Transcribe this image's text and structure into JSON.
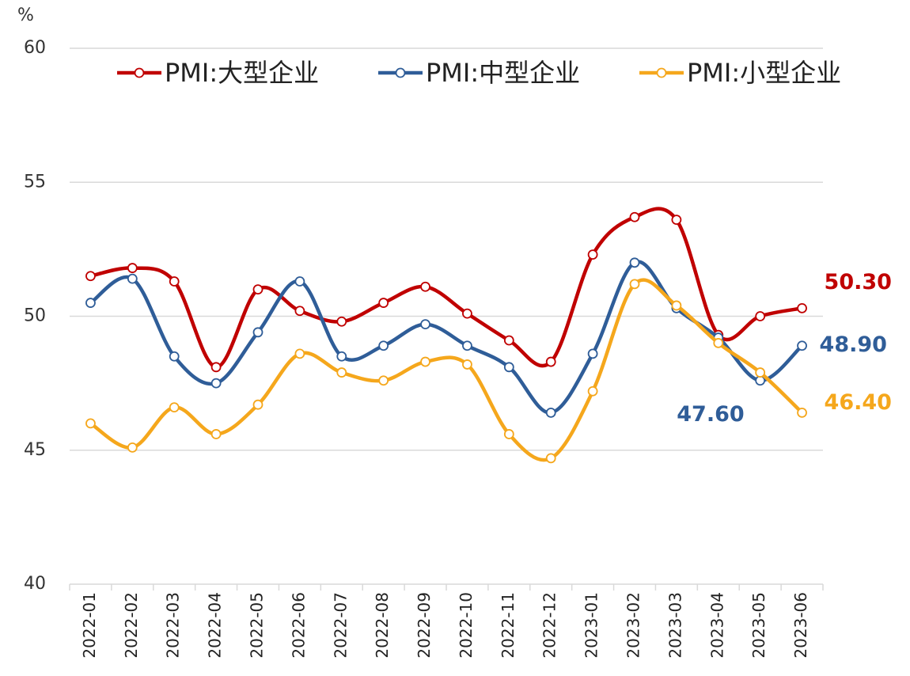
{
  "chart_data": {
    "type": "line",
    "y_unit": "%",
    "categories": [
      "2022-01",
      "2022-02",
      "2022-03",
      "2022-04",
      "2022-05",
      "2022-06",
      "2022-07",
      "2022-08",
      "2022-09",
      "2022-10",
      "2022-11",
      "2022-12",
      "2023-01",
      "2023-02",
      "2023-03",
      "2023-04",
      "2023-05",
      "2023-06"
    ],
    "series": [
      {
        "name": "PMI:大型企业",
        "color": "#c00000",
        "values": [
          51.5,
          51.8,
          51.3,
          48.1,
          51.0,
          50.2,
          49.8,
          50.5,
          51.1,
          50.1,
          49.1,
          48.3,
          52.3,
          53.7,
          53.6,
          49.3,
          50.0,
          50.3
        ],
        "value_labels": [
          null,
          null,
          null,
          null,
          null,
          null,
          null,
          null,
          null,
          null,
          null,
          null,
          null,
          null,
          null,
          null,
          null,
          "50.30"
        ]
      },
      {
        "name": "PMI:中型企业",
        "color": "#2f5d98",
        "values": [
          50.5,
          51.4,
          48.5,
          47.5,
          49.4,
          51.3,
          48.5,
          48.9,
          49.7,
          48.9,
          48.1,
          46.4,
          48.6,
          52.0,
          50.3,
          49.2,
          47.6,
          48.9
        ],
        "value_labels": [
          null,
          null,
          null,
          null,
          null,
          null,
          null,
          null,
          null,
          null,
          null,
          null,
          null,
          null,
          null,
          null,
          "47.60",
          "48.90"
        ]
      },
      {
        "name": "PMI:小型企业",
        "color": "#f5a71c",
        "values": [
          46.0,
          45.1,
          46.6,
          45.6,
          46.7,
          48.6,
          47.9,
          47.6,
          48.3,
          48.2,
          45.6,
          44.7,
          47.2,
          51.2,
          50.4,
          49.0,
          47.9,
          46.4
        ],
        "value_labels": [
          null,
          null,
          null,
          null,
          null,
          null,
          null,
          null,
          null,
          null,
          null,
          null,
          null,
          null,
          null,
          null,
          null,
          "46.40"
        ]
      }
    ],
    "ylim": [
      40,
      60
    ],
    "yticks": [
      40,
      45,
      50,
      55,
      60
    ],
    "grid": true,
    "legend": "top",
    "smooth": true
  }
}
